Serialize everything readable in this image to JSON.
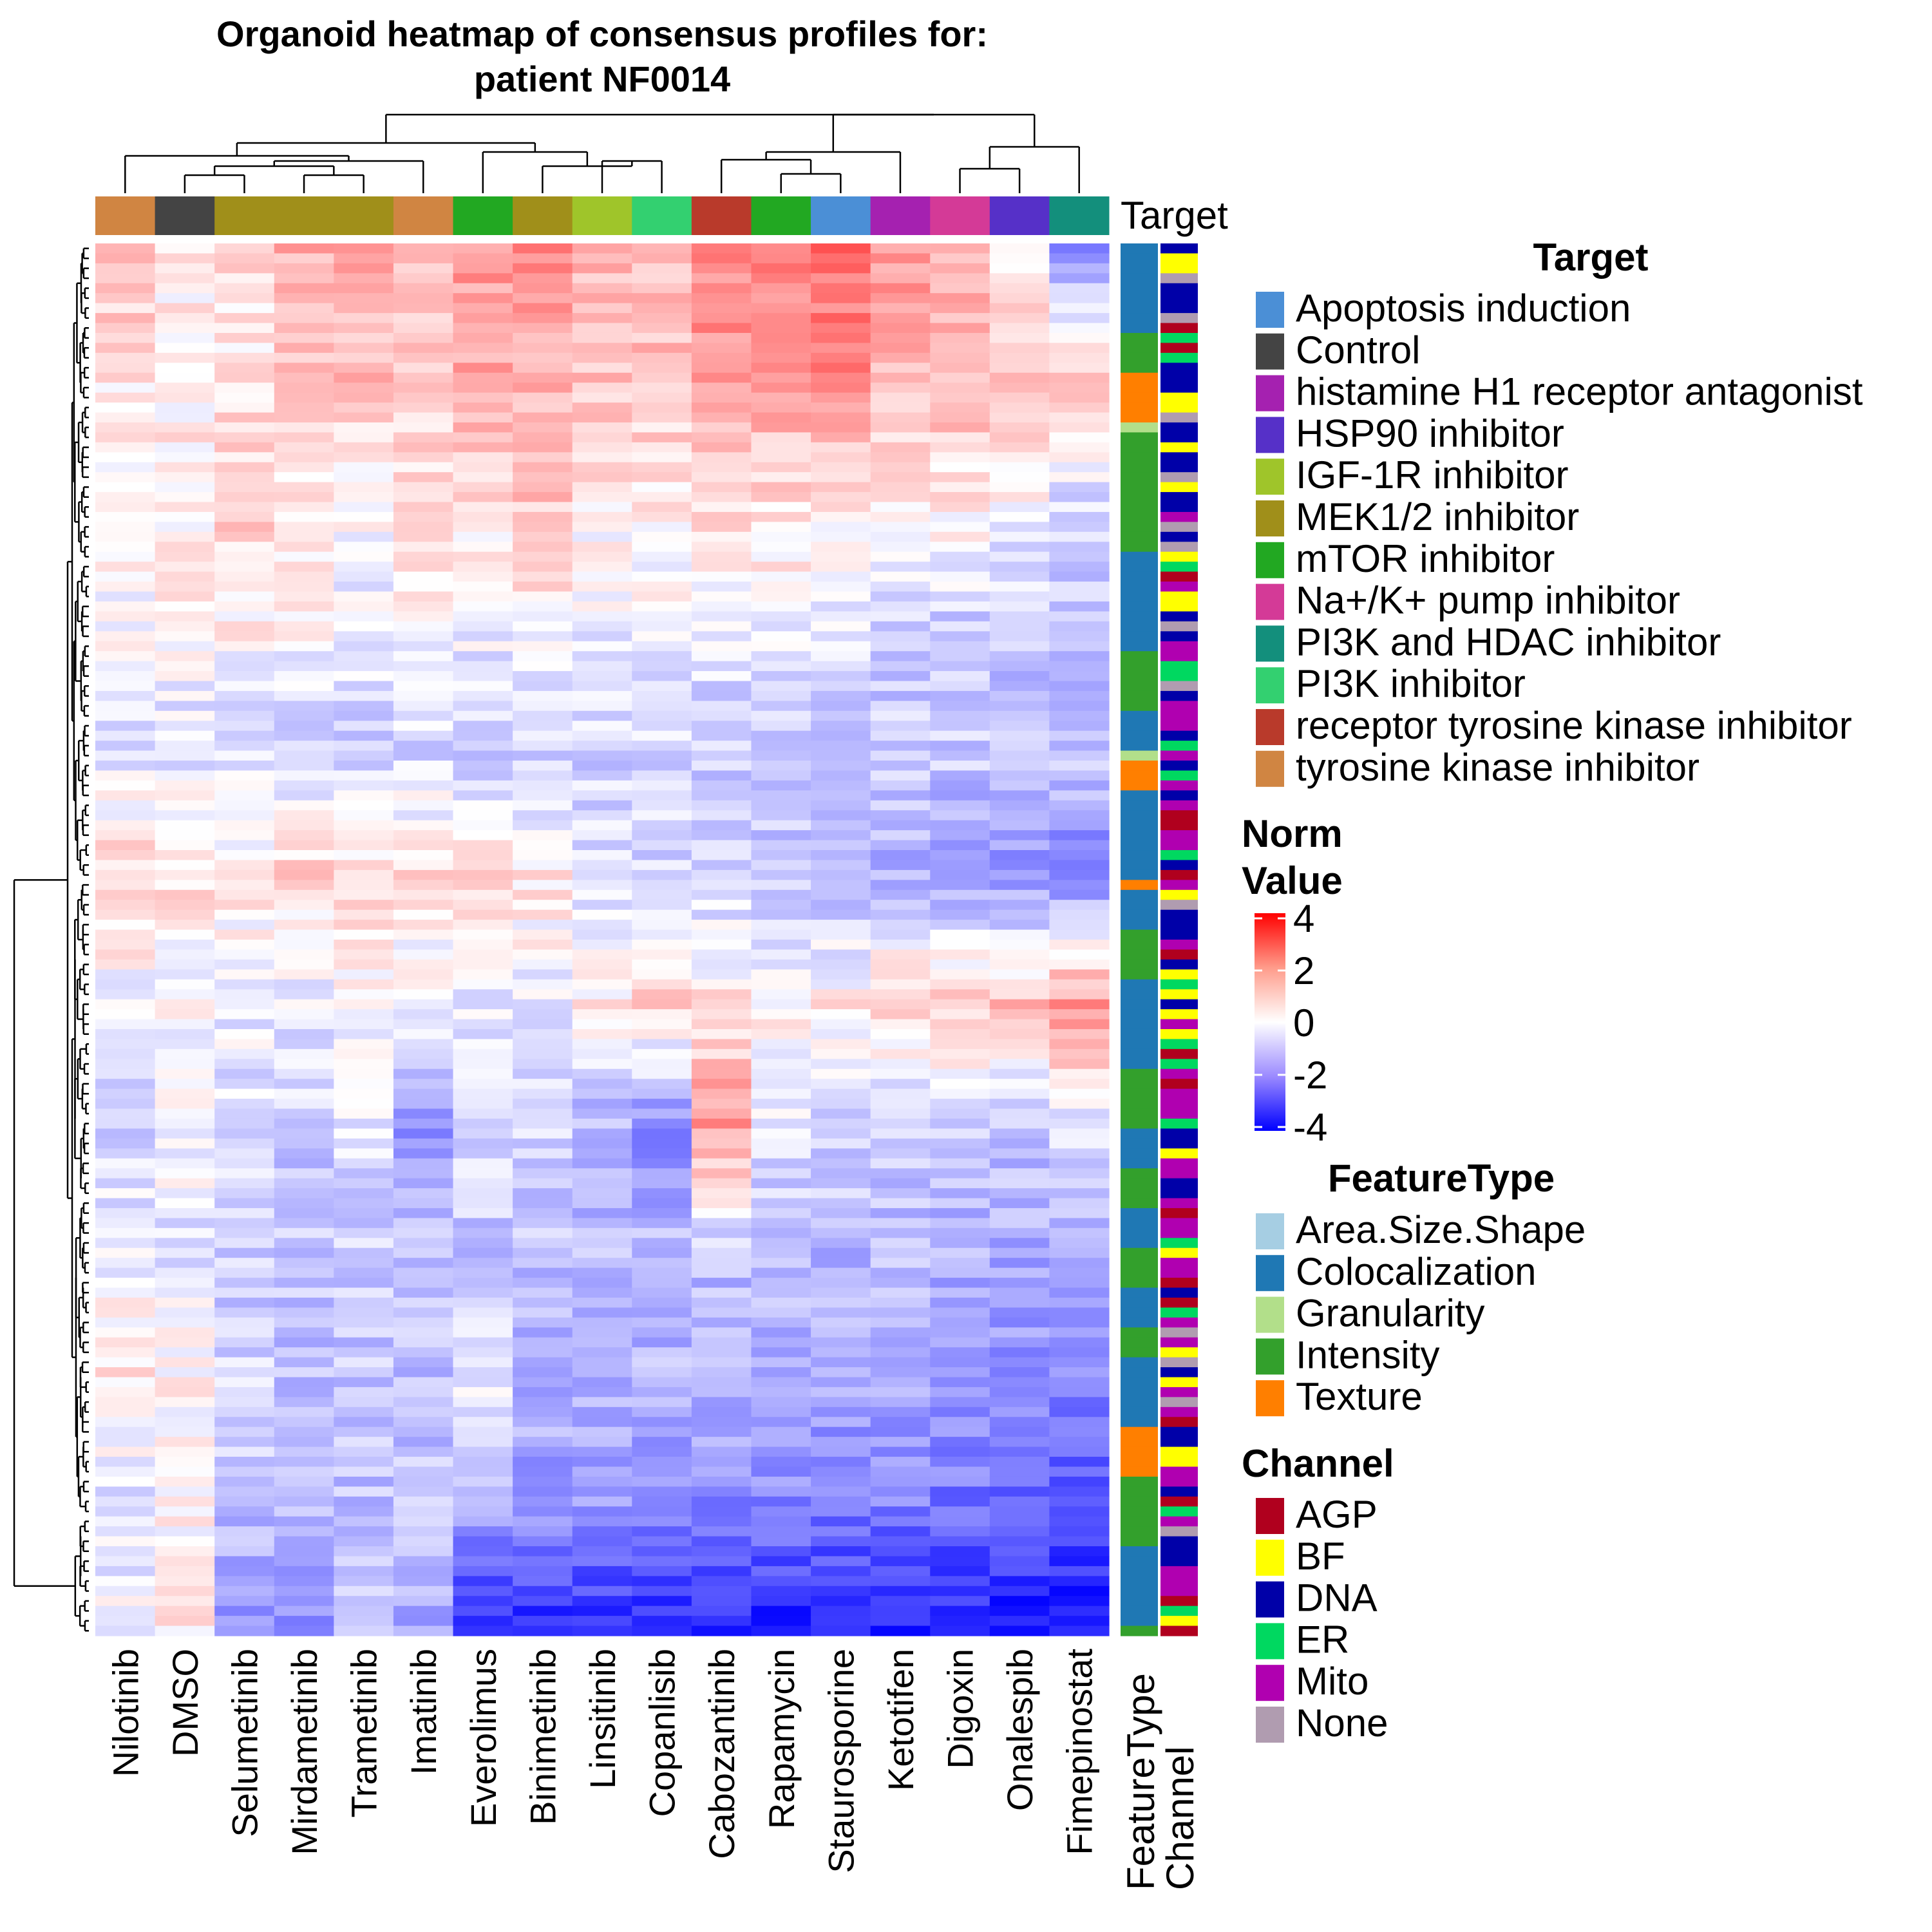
{
  "chart_data": {
    "type": "heatmap",
    "title_line1": "Organoid heatmap of consensus profiles for:",
    "title_line2": "patient NF0014",
    "columns": [
      "Nilotinib",
      "DMSO",
      "Selumetinib",
      "Mirdametinib",
      "Trametinib",
      "Imatinib",
      "Everolimus",
      "Binimetinib",
      "Linsitinib",
      "Copanlisib",
      "Cabozantinib",
      "Rapamycin",
      "Staurosporine",
      "Ketotifen",
      "Digoxin",
      "Onalespib",
      "Fimepinostat"
    ],
    "column_targets": [
      "tyrosine kinase inhibitor",
      "Control",
      "MEK1/2 inhibitor",
      "MEK1/2 inhibitor",
      "MEK1/2 inhibitor",
      "tyrosine kinase inhibitor",
      "mTOR inhibitor",
      "MEK1/2 inhibitor",
      "IGF-1R inhibitor",
      "PI3K inhibitor",
      "receptor tyrosine kinase inhibitor",
      "mTOR inhibitor",
      "Apoptosis induction",
      "histamine H1 receptor antagonist",
      "Na+/K+ pump inhibitor",
      "HSP90 inhibitor",
      "PI3K and HDAC inhibitor"
    ],
    "top_annotation_label": "Target",
    "row_annotation_labels": [
      "FeatureType",
      "Channel"
    ],
    "rows_approx": 140,
    "value_note": "Norm Value per feature (row) per treatment (column); approximate range -4 to 4",
    "row_profile_pattern": [
      [
        1.0,
        0.3,
        0.5,
        1.2,
        1.5,
        1.0,
        1.6,
        1.8,
        1.2,
        0.8,
        1.8,
        2.0,
        2.4,
        1.6,
        1.2,
        0.4,
        -1.8
      ],
      [
        0.4,
        0.2,
        0.3,
        0.8,
        1.0,
        0.6,
        1.4,
        1.2,
        1.0,
        1.0,
        1.6,
        1.4,
        1.8,
        1.2,
        1.2,
        0.8,
        0.9
      ],
      [
        0.2,
        0.3,
        0.8,
        0.4,
        0.2,
        0.5,
        0.6,
        0.9,
        0.3,
        0.4,
        0.6,
        0.6,
        0.5,
        0.2,
        0.3,
        0.0,
        -0.6
      ],
      [
        0.0,
        0.1,
        0.2,
        0.1,
        -0.3,
        0.1,
        -0.2,
        0.1,
        -0.3,
        -0.2,
        -0.3,
        -0.2,
        -0.4,
        -0.8,
        -0.8,
        -0.9,
        -1.0
      ],
      [
        -0.6,
        -0.5,
        -0.6,
        -0.7,
        -0.7,
        -0.6,
        -0.8,
        -0.8,
        -0.7,
        -0.6,
        -0.8,
        -0.9,
        -0.9,
        -0.8,
        -0.8,
        -0.9,
        -0.9
      ],
      [
        0.8,
        0.5,
        0.4,
        0.7,
        0.6,
        0.5,
        0.5,
        0.4,
        -0.5,
        -0.6,
        -0.8,
        -0.9,
        -1.1,
        -1.2,
        -1.6,
        -1.7,
        -1.9
      ],
      [
        -0.2,
        -0.1,
        -0.3,
        -0.3,
        -0.1,
        -0.2,
        -0.4,
        -0.3,
        0.3,
        0.8,
        0.4,
        0.2,
        0.3,
        0.9,
        0.9,
        1.0,
        1.6
      ],
      [
        -0.7,
        -0.1,
        -0.5,
        -0.8,
        -0.4,
        -1.8,
        -0.6,
        -0.6,
        -1.2,
        -1.8,
        1.6,
        -0.5,
        -0.6,
        -0.9,
        -0.8,
        -0.9,
        -0.5
      ],
      [
        -0.2,
        -0.4,
        -0.8,
        -0.9,
        -0.8,
        -0.9,
        -0.9,
        -1.0,
        -1.0,
        -1.0,
        -1.0,
        -1.1,
        -1.1,
        -1.1,
        -1.2,
        -1.3,
        -1.3
      ],
      [
        0.4,
        0.2,
        -0.7,
        -1.0,
        -0.9,
        -1.0,
        -0.3,
        -1.1,
        -1.1,
        -1.2,
        -1.2,
        -1.2,
        -1.3,
        -1.3,
        -1.5,
        -1.8,
        -1.9
      ],
      [
        -0.4,
        0.0,
        -1.0,
        -1.0,
        -1.0,
        -1.0,
        -1.4,
        -1.6,
        -1.5,
        -1.6,
        -1.8,
        -1.9,
        -2.1,
        -2.0,
        -2.2,
        -2.4,
        -2.6
      ],
      [
        -0.1,
        0.3,
        -1.6,
        -2.0,
        -0.4,
        -1.4,
        -3.5,
        -3.5,
        -3.5,
        -3.6,
        -3.6,
        -3.6,
        -3.6,
        -3.6,
        -3.6,
        -3.7,
        -3.8
      ]
    ]
  },
  "legend": {
    "target": {
      "title": "Target",
      "items": [
        {
          "label": "Apoptosis induction",
          "color": "#4B8FD6"
        },
        {
          "label": "Control",
          "color": "#444444"
        },
        {
          "label": "histamine H1 receptor antagonist",
          "color": "#A521B0"
        },
        {
          "label": "HSP90 inhibitor",
          "color": "#5630C8"
        },
        {
          "label": "IGF-1R inhibitor",
          "color": "#9FC52A"
        },
        {
          "label": "MEK1/2 inhibitor",
          "color": "#A08F1A"
        },
        {
          "label": "mTOR inhibitor",
          "color": "#22A822"
        },
        {
          "label": "Na+/K+ pump inhibitor",
          "color": "#D43A97"
        },
        {
          "label": "PI3K and HDAC inhibitor",
          "color": "#138F7C"
        },
        {
          "label": "PI3K inhibitor",
          "color": "#33D070"
        },
        {
          "label": "receptor tyrosine kinase inhibitor",
          "color": "#B93A2B"
        },
        {
          "label": "tyrosine kinase inhibitor",
          "color": "#D08542"
        }
      ]
    },
    "norm": {
      "title_line1": "Norm",
      "title_line2": "Value",
      "ticks": [
        "4",
        "2",
        "0",
        "-2",
        "-4"
      ]
    },
    "feature_type": {
      "title": "FeatureType",
      "items": [
        {
          "label": "Area.Size.Shape",
          "color": "#A6CEE3"
        },
        {
          "label": "Colocalization",
          "color": "#1F78B4"
        },
        {
          "label": "Granularity",
          "color": "#B2DF8A"
        },
        {
          "label": "Intensity",
          "color": "#33A02C"
        },
        {
          "label": "Texture",
          "color": "#FF7F00"
        }
      ]
    },
    "channel": {
      "title": "Channel",
      "items": [
        {
          "label": "AGP",
          "color": "#B0001E"
        },
        {
          "label": "BF",
          "color": "#FFFF00"
        },
        {
          "label": "DNA",
          "color": "#0000A8"
        },
        {
          "label": "ER",
          "color": "#00D860"
        },
        {
          "label": "Mito",
          "color": "#B000B0"
        },
        {
          "label": "None",
          "color": "#B09CB0"
        }
      ]
    }
  },
  "colors": {
    "low": "#0000FF",
    "mid": "#FFFFFF",
    "high": "#FF0000"
  }
}
